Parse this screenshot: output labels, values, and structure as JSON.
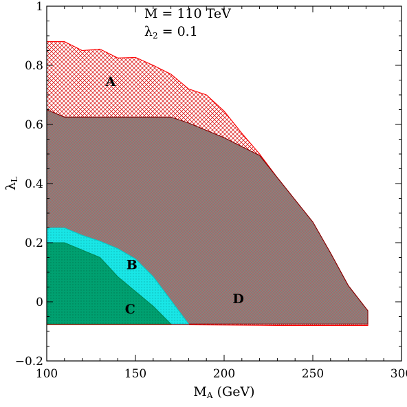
{
  "chart_data": {
    "type": "area",
    "title": "",
    "xlabel": {
      "main": "M",
      "sub": "A",
      "unit": " (GeV)"
    },
    "ylabel": {
      "main": "λ",
      "sub": "L"
    },
    "xlim": [
      100,
      300
    ],
    "ylim": [
      -0.2,
      1.0
    ],
    "xticks": [
      100,
      150,
      200,
      250,
      300
    ],
    "xtick_labels": [
      "100",
      "150",
      "200",
      "250",
      "300"
    ],
    "yticks": [
      -0.2,
      0,
      0.2,
      0.4,
      0.6,
      0.8,
      1.0
    ],
    "ytick_labels": [
      "−0.2",
      "0",
      "0.2",
      "0.4",
      "0.6",
      "0.8",
      "1"
    ],
    "grid": false,
    "annotations": [
      {
        "text": "M = 110 TeV",
        "x": 155,
        "y": 0.96
      },
      {
        "text_main": "λ",
        "text_sub": "2",
        "text_rest": " = 0.1",
        "x": 155,
        "y": 0.9
      }
    ],
    "regions": [
      {
        "label": "A",
        "label_pos": [
          136,
          0.73
        ],
        "fill": "#ffffff",
        "hatch": "#dd2222",
        "hatch_pattern": "crosshatch",
        "stroke": "#ff0000",
        "points": [
          [
            100,
            0.88
          ],
          [
            110,
            0.88
          ],
          [
            120,
            0.85
          ],
          [
            130,
            0.855
          ],
          [
            140,
            0.825
          ],
          [
            150,
            0.827
          ],
          [
            160,
            0.8
          ],
          [
            170,
            0.77
          ],
          [
            180,
            0.72
          ],
          [
            190,
            0.7
          ],
          [
            200,
            0.645
          ],
          [
            210,
            0.57
          ],
          [
            220,
            0.5
          ],
          [
            230,
            0.42
          ],
          [
            240,
            0.345
          ],
          [
            250,
            0.27
          ],
          [
            260,
            0.165
          ],
          [
            270,
            0.055
          ],
          [
            281,
            -0.03
          ],
          [
            281,
            -0.08
          ],
          [
            230,
            -0.08
          ],
          [
            180,
            -0.078
          ],
          [
            100,
            -0.078
          ]
        ]
      },
      {
        "label": "D",
        "label_pos": [
          208,
          -0.005
        ],
        "fill": "#8a8080",
        "hatch": "#4a9a66",
        "hatch_pattern": "diagonal",
        "stroke": "#800000",
        "points": [
          [
            100,
            0.65
          ],
          [
            110,
            0.625
          ],
          [
            170,
            0.625
          ],
          [
            180,
            0.605
          ],
          [
            190,
            0.58
          ],
          [
            200,
            0.555
          ],
          [
            210,
            0.525
          ],
          [
            220,
            0.495
          ],
          [
            230,
            0.42
          ],
          [
            240,
            0.345
          ],
          [
            250,
            0.27
          ],
          [
            260,
            0.165
          ],
          [
            270,
            0.055
          ],
          [
            281,
            -0.03
          ],
          [
            281,
            -0.075
          ],
          [
            230,
            -0.075
          ],
          [
            180,
            -0.075
          ],
          [
            100,
            -0.075
          ]
        ]
      },
      {
        "label": "B",
        "label_pos": [
          148,
          0.11
        ],
        "fill": "#19e6e6",
        "hatch": "#0fb3b3",
        "hatch_pattern": "dots",
        "stroke": "#00cccc",
        "points": [
          [
            100,
            0.25
          ],
          [
            110,
            0.25
          ],
          [
            120,
            0.225
          ],
          [
            130,
            0.205
          ],
          [
            140,
            0.18
          ],
          [
            150,
            0.145
          ],
          [
            160,
            0.085
          ],
          [
            170,
            0.005
          ],
          [
            180,
            -0.075
          ],
          [
            100,
            -0.075
          ]
        ]
      },
      {
        "label": "C",
        "label_pos": [
          147,
          -0.04
        ],
        "fill": "#00a070",
        "hatch": "#007a52",
        "hatch_pattern": "dots",
        "stroke": "#008855",
        "points": [
          [
            100,
            0.2
          ],
          [
            110,
            0.2
          ],
          [
            120,
            0.175
          ],
          [
            130,
            0.15
          ],
          [
            140,
            0.085
          ],
          [
            150,
            0.035
          ],
          [
            160,
            -0.015
          ],
          [
            170,
            -0.075
          ],
          [
            100,
            -0.075
          ]
        ]
      }
    ]
  }
}
